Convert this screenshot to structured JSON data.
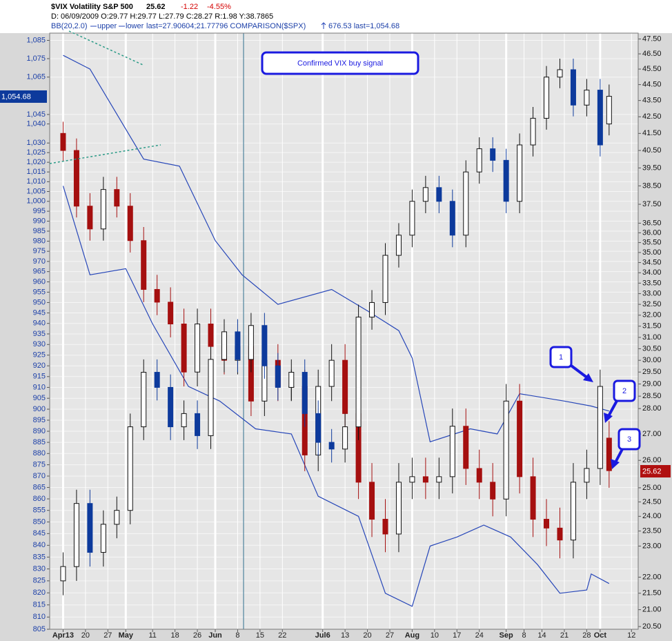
{
  "chart_data": {
    "type": "candlestick",
    "title": "$VIX Volatility S&P 500",
    "last": "25.62",
    "change": "-1.22",
    "change_pct": "-4.55%",
    "info_line": "D: 06/09/2009 O:29.77 H:29.77 L:27.79 C:28.27 R:1.98 Y:38.7865",
    "indicator": "BB(20,2.0)",
    "indicator_last": "last=27.90604;21.77796 COMPARISON($SPX)",
    "comparison_last": "676.53 last=1,054.68",
    "y2_last_label": "1,054.68",
    "annotations": [
      "Confirmed VIX buy signal",
      "1",
      "2",
      "3"
    ],
    "log_scale": true,
    "grid": true,
    "xlim": [
      -3,
      128.5
    ],
    "xticks": [
      {
        "value": 0,
        "label": "Apr13"
      },
      {
        "value": 5,
        "label": "20"
      },
      {
        "value": 10,
        "label": "27"
      },
      {
        "value": 14,
        "label": "May"
      },
      {
        "value": 20,
        "label": "11"
      },
      {
        "value": 25,
        "label": "18"
      },
      {
        "value": 30,
        "label": "26"
      },
      {
        "value": 34,
        "label": "Jun"
      },
      {
        "value": 39,
        "label": "8"
      },
      {
        "value": 44,
        "label": "15"
      },
      {
        "value": 49,
        "label": "22"
      },
      {
        "value": 58,
        "label": "Jul6"
      },
      {
        "value": 63,
        "label": "13"
      },
      {
        "value": 68,
        "label": "20"
      },
      {
        "value": 73,
        "label": "27"
      },
      {
        "value": 78,
        "label": "Aug"
      },
      {
        "value": 83,
        "label": "10"
      },
      {
        "value": 88,
        "label": "17"
      },
      {
        "value": 93,
        "label": "24"
      },
      {
        "value": 99,
        "label": "Sep"
      },
      {
        "value": 103,
        "label": "8"
      },
      {
        "value": 107,
        "label": "14"
      },
      {
        "value": 112,
        "label": "21"
      },
      {
        "value": 117,
        "label": "28"
      },
      {
        "value": 120,
        "label": "Oct"
      },
      {
        "value": 127,
        "label": "12"
      }
    ],
    "ylim": [
      20.42,
      47.9
    ],
    "yticks": [
      {
        "value": 47.5,
        "label": "47.50"
      },
      {
        "value": 46.5,
        "label": "46.50"
      },
      {
        "value": 45.5,
        "label": "45.50"
      },
      {
        "value": 44.5,
        "label": "44.50"
      },
      {
        "value": 43.5,
        "label": "43.50"
      },
      {
        "value": 42.5,
        "label": "42.50"
      },
      {
        "value": 41.5,
        "label": "41.50"
      },
      {
        "value": 40.5,
        "label": "40.50"
      },
      {
        "value": 39.5,
        "label": "39.50"
      },
      {
        "value": 38.5,
        "label": "38.50"
      },
      {
        "value": 37.5,
        "label": "37.50"
      },
      {
        "value": 36.5,
        "label": "36.50"
      },
      {
        "value": 36,
        "label": "36.00"
      },
      {
        "value": 35.5,
        "label": "35.50"
      },
      {
        "value": 35,
        "label": "35.00"
      },
      {
        "value": 34.5,
        "label": "34.50"
      },
      {
        "value": 34,
        "label": "34.00"
      },
      {
        "value": 33.5,
        "label": "33.50"
      },
      {
        "value": 33,
        "label": "33.00"
      },
      {
        "value": 32.5,
        "label": "32.50"
      },
      {
        "value": 32,
        "label": "32.00"
      },
      {
        "value": 31.5,
        "label": "31.50"
      },
      {
        "value": 31,
        "label": "31.00"
      },
      {
        "value": 30.5,
        "label": "30.50"
      },
      {
        "value": 30,
        "label": "30.00"
      },
      {
        "value": 29.5,
        "label": "29.50"
      },
      {
        "value": 29,
        "label": "29.00"
      },
      {
        "value": 28.5,
        "label": "28.50"
      },
      {
        "value": 28,
        "label": "28.00"
      },
      {
        "value": 27,
        "label": "27.00"
      },
      {
        "value": 26,
        "label": "26.00"
      },
      {
        "value": 25,
        "label": "25.00"
      },
      {
        "value": 24.5,
        "label": "24.50"
      },
      {
        "value": 24,
        "label": "24.00"
      },
      {
        "value": 23.5,
        "label": "23.50"
      },
      {
        "value": 23,
        "label": "23.00"
      },
      {
        "value": 22,
        "label": "22.00"
      },
      {
        "value": 21.5,
        "label": "21.50"
      },
      {
        "value": 21,
        "label": "21.00"
      },
      {
        "value": 20.5,
        "label": "20.50"
      }
    ],
    "y2lim": [
      805,
      1089
    ],
    "y2ticks": [
      {
        "value": 1085,
        "label": "1,085"
      },
      {
        "value": 1075,
        "label": "1,075"
      },
      {
        "value": 1065,
        "label": "1,065"
      },
      {
        "value": 1045,
        "label": "1,045"
      },
      {
        "value": 1040,
        "label": "1,040"
      },
      {
        "value": 1030,
        "label": "1,030"
      },
      {
        "value": 1025,
        "label": "1,025"
      },
      {
        "value": 1020,
        "label": "1,020"
      },
      {
        "value": 1015,
        "label": "1,015"
      },
      {
        "value": 1010,
        "label": "1,010"
      },
      {
        "value": 1005,
        "label": "1,005"
      },
      {
        "value": 1000,
        "label": "1,000"
      },
      995,
      990,
      985,
      980,
      975,
      970,
      965,
      960,
      955,
      950,
      945,
      940,
      935,
      930,
      925,
      920,
      915,
      910,
      905,
      900,
      895,
      890,
      885,
      880,
      875,
      870,
      865,
      860,
      855,
      850,
      845,
      840,
      835,
      830,
      825,
      820,
      815,
      810,
      805
    ],
    "series": [
      {
        "kind": "candle",
        "color": "#a50f0f",
        "up_color": "#ffffff",
        "x": [
          0,
          3,
          6,
          9,
          12,
          15,
          18,
          21,
          24,
          27,
          30,
          33,
          36,
          39,
          42,
          45,
          48,
          51,
          54,
          57,
          60,
          63,
          66,
          69,
          72,
          75,
          78,
          81,
          84,
          87,
          90,
          93,
          96,
          99,
          102,
          105,
          108,
          111,
          114,
          117,
          120,
          122
        ],
        "open": [
          41.5,
          40.5,
          37.4,
          36.2,
          38.3,
          37.4,
          35.6,
          33.2,
          32.6,
          31.6,
          29.5,
          31.6,
          30.6,
          30.0,
          30.6,
          28.3,
          30.0,
          28.9,
          28.9,
          26.2,
          28.9,
          30.0,
          27.8,
          25.2,
          23.9,
          23.4,
          25.2,
          25.4,
          25.2,
          25.4,
          27.3,
          25.7,
          25.2,
          24.6,
          28.3,
          25.4,
          23.9,
          23.6,
          23.2,
          25.2,
          25.7,
          26.84
        ],
        "high": [
          42.2,
          41.2,
          38.1,
          39.0,
          39.0,
          38.1,
          36.3,
          33.9,
          33.3,
          32.3,
          32.3,
          32.3,
          31.3,
          31.3,
          31.3,
          30.7,
          30.7,
          29.6,
          29.6,
          29.6,
          30.7,
          30.7,
          28.5,
          25.9,
          24.6,
          25.9,
          26.1,
          26.1,
          26.1,
          28.0,
          28.0,
          26.4,
          25.9,
          29.0,
          29.0,
          26.1,
          24.6,
          24.3,
          25.9,
          26.4,
          29.6,
          27.5
        ],
        "low": [
          39.9,
          36.8,
          35.6,
          35.6,
          36.8,
          35.0,
          32.6,
          32.0,
          31.0,
          28.9,
          28.9,
          30.0,
          29.4,
          29.4,
          27.7,
          27.7,
          28.3,
          28.3,
          25.6,
          25.6,
          28.3,
          27.2,
          24.6,
          23.3,
          22.8,
          22.8,
          24.6,
          24.6,
          24.6,
          24.8,
          25.1,
          24.6,
          24.0,
          24.0,
          24.8,
          23.3,
          23.0,
          22.6,
          22.6,
          24.6,
          25.1,
          25.0
        ],
        "close": [
          40.5,
          37.4,
          36.2,
          38.3,
          37.4,
          35.6,
          33.2,
          32.6,
          31.6,
          29.5,
          31.6,
          30.6,
          30.0,
          30.6,
          28.3,
          30.0,
          28.9,
          28.9,
          26.2,
          28.9,
          30.0,
          27.8,
          25.2,
          23.9,
          23.4,
          25.2,
          25.4,
          25.2,
          25.4,
          27.3,
          25.7,
          25.2,
          24.6,
          28.3,
          25.4,
          23.9,
          23.6,
          23.2,
          25.2,
          25.7,
          28.9,
          25.62
        ]
      },
      {
        "kind": "candle",
        "axis": "y2",
        "color": "#0d3a9c",
        "up_color": "#ffffff",
        "x": [
          0,
          3,
          6,
          9,
          12,
          15,
          18,
          21,
          24,
          27,
          30,
          33,
          36,
          39,
          42,
          45,
          48,
          51,
          54,
          57,
          60,
          63,
          66,
          69,
          72,
          75,
          78,
          81,
          84,
          87,
          90,
          93,
          96,
          99,
          102,
          105,
          108,
          111,
          114,
          117,
          120,
          122
        ],
        "open": [
          825,
          831,
          858,
          837,
          849,
          855,
          892,
          917,
          910,
          892,
          898,
          888,
          923,
          936,
          923,
          939,
          920,
          910,
          917,
          898,
          885,
          882,
          892,
          943,
          950,
          973,
          983,
          1000,
          1007,
          1000,
          983,
          1015,
          1027,
          1021,
          1000,
          1029,
          1043,
          1065,
          1069,
          1050,
          1058,
          1040
        ],
        "high": [
          837,
          864,
          864,
          855,
          861,
          898,
          923,
          923,
          916,
          904,
          904,
          929,
          942,
          942,
          945,
          945,
          926,
          923,
          923,
          904,
          891,
          898,
          949,
          956,
          979,
          989,
          1006,
          1013,
          1013,
          1006,
          1021,
          1033,
          1033,
          1027,
          1035,
          1049,
          1071,
          1075,
          1075,
          1064,
          1064,
          1061
        ],
        "low": [
          819,
          825,
          831,
          831,
          843,
          849,
          886,
          904,
          886,
          886,
          882,
          882,
          917,
          917,
          917,
          914,
          904,
          904,
          892,
          879,
          876,
          876,
          886,
          937,
          944,
          967,
          977,
          994,
          994,
          977,
          977,
          1009,
          1015,
          994,
          994,
          1023,
          1037,
          1059,
          1044,
          1044,
          1023,
          1034
        ],
        "close": [
          831,
          858,
          837,
          849,
          855,
          892,
          917,
          910,
          892,
          898,
          888,
          923,
          936,
          923,
          939,
          920,
          910,
          917,
          898,
          885,
          882,
          892,
          943,
          950,
          973,
          983,
          1000,
          1007,
          1000,
          983,
          1015,
          1027,
          1021,
          1000,
          1029,
          1043,
          1065,
          1069,
          1050,
          1058,
          1029,
          1054.68
        ]
      },
      {
        "kind": "line",
        "name": "upper",
        "color": "#2646b8",
        "x": [
          0,
          6,
          18,
          26,
          34,
          40,
          48,
          60,
          68,
          75,
          78,
          82,
          91,
          97,
          102,
          112,
          118,
          122
        ],
        "values": [
          46.4,
          45.5,
          40.0,
          39.6,
          35.6,
          33.9,
          32.5,
          33.2,
          32.2,
          31.3,
          30.1,
          26.7,
          27.2,
          27.0,
          28.6,
          28.3,
          28.1,
          27.9
        ]
      },
      {
        "kind": "line",
        "name": "lower",
        "color": "#2646b8",
        "x": [
          0,
          6,
          14,
          20,
          28,
          35,
          43,
          51,
          57,
          66,
          72,
          78,
          82,
          88,
          94,
          100,
          106,
          111,
          117,
          118,
          122
        ],
        "values": [
          38.5,
          33.9,
          34.2,
          31.6,
          28.9,
          28.3,
          27.2,
          27.0,
          24.7,
          24.0,
          21.5,
          21.1,
          23.0,
          23.3,
          23.7,
          23.3,
          22.4,
          21.5,
          21.6,
          22.1,
          21.8
        ]
      }
    ]
  }
}
